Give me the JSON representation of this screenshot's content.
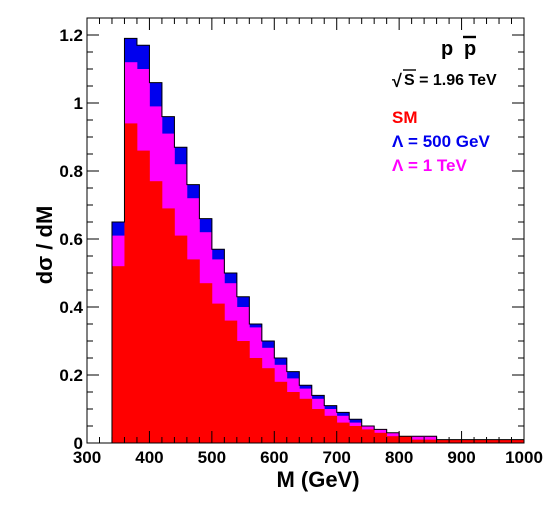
{
  "chart_data": {
    "type": "bar",
    "subtype": "stacked-histogram",
    "xlabel": "M  (GeV)",
    "ylabel": "dσ / dM",
    "xlim": [
      300,
      1000
    ],
    "ylim": [
      0,
      1.25
    ],
    "x_ticks": [
      "300",
      "400",
      "500",
      "600",
      "700",
      "800",
      "900",
      "1000"
    ],
    "y_ticks": [
      "0",
      "0.2",
      "0.4",
      "0.6",
      "0.8",
      "1",
      "1.2"
    ],
    "grid": false,
    "bins_lower_edge": [
      340,
      360,
      380,
      400,
      420,
      440,
      460,
      480,
      500,
      520,
      540,
      560,
      580,
      600,
      620,
      640,
      660,
      680,
      700,
      720,
      740,
      760,
      780,
      800,
      820,
      840,
      860,
      880,
      900,
      920,
      940,
      960,
      980
    ],
    "bin_width": 20,
    "series": [
      {
        "name": "Λ = 500 GeV",
        "color": "#0000ee",
        "values": [
          0.65,
          1.19,
          1.17,
          1.06,
          0.96,
          0.87,
          0.76,
          0.66,
          0.57,
          0.5,
          0.43,
          0.35,
          0.3,
          0.25,
          0.21,
          0.17,
          0.14,
          0.11,
          0.09,
          0.07,
          0.05,
          0.04,
          0.03,
          0.02,
          0.02,
          0.02,
          0.01,
          0.01,
          0.01,
          0.01,
          0.01,
          0.01,
          0.01
        ]
      },
      {
        "name": "Λ = 1  TeV",
        "color": "#ff00ff",
        "values": [
          0.61,
          1.12,
          1.1,
          0.99,
          0.91,
          0.82,
          0.72,
          0.62,
          0.54,
          0.47,
          0.4,
          0.34,
          0.28,
          0.23,
          0.19,
          0.16,
          0.13,
          0.1,
          0.08,
          0.06,
          0.05,
          0.04,
          0.03,
          0.02,
          0.02,
          0.02,
          0.01,
          0.01,
          0.01,
          0.01,
          0.01,
          0.01,
          0.01
        ]
      },
      {
        "name": "SM",
        "color": "#ff0000",
        "values": [
          0.52,
          0.94,
          0.86,
          0.77,
          0.69,
          0.61,
          0.54,
          0.47,
          0.41,
          0.36,
          0.3,
          0.25,
          0.22,
          0.18,
          0.15,
          0.13,
          0.1,
          0.08,
          0.06,
          0.05,
          0.04,
          0.03,
          0.02,
          0.02,
          0.01,
          0.01,
          0.01,
          0.01,
          0.01,
          0.01,
          0.01,
          0.01,
          0.01
        ]
      }
    ],
    "annotations": {
      "process_p1": "p",
      "process_p2": "p",
      "sqrt_symbol": "√",
      "energy_label": "S = 1.96 TeV"
    },
    "legend_placement": "top-right"
  }
}
